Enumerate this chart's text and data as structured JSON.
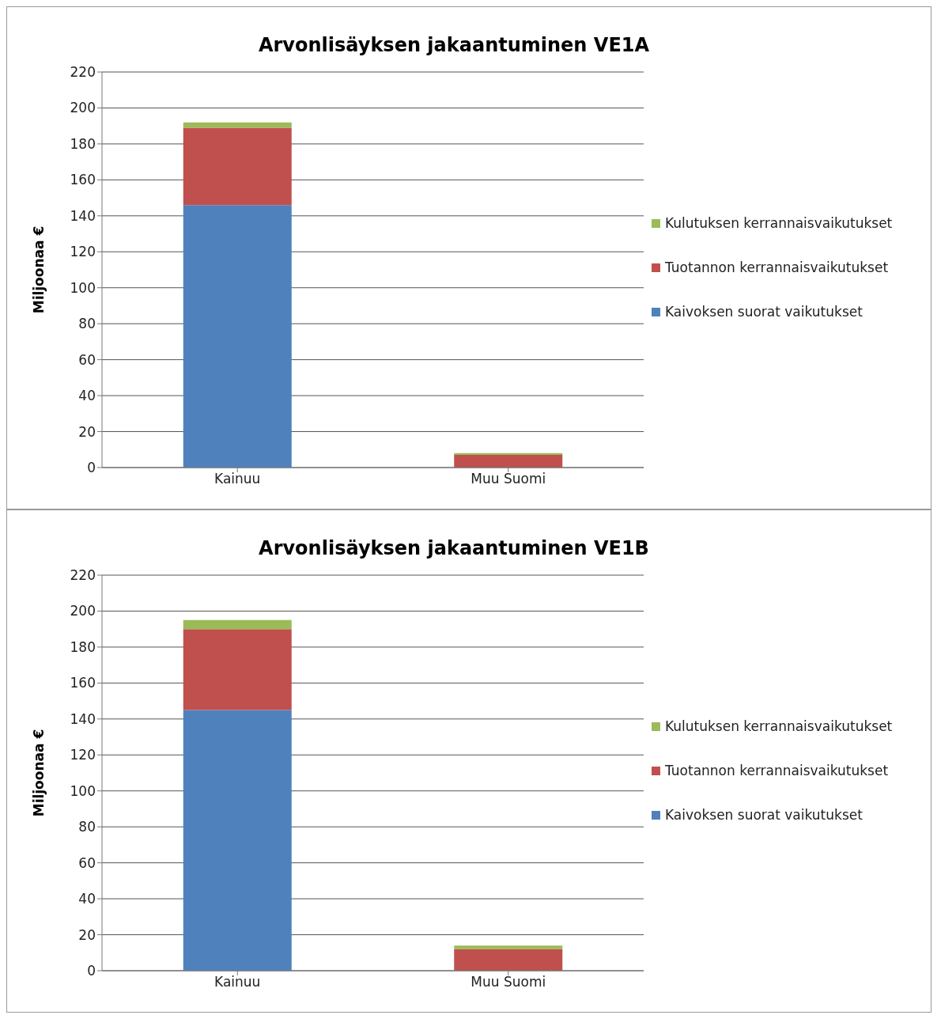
{
  "chart_data": [
    {
      "type": "bar",
      "title": "Arvonlisäyksen jakaantuminen VE1A",
      "ylabel": "Miljoonaa €",
      "categories": [
        "Kainuu",
        "Muu Suomi"
      ],
      "stacked": true,
      "ylim": [
        0,
        220
      ],
      "yticks": [
        0,
        20,
        40,
        60,
        80,
        100,
        120,
        140,
        160,
        180,
        200,
        220
      ],
      "grid": "y",
      "legend": "right",
      "series": [
        {
          "name": "Kaivoksen suorat vaikutukset",
          "color": "#4f81bd",
          "values": [
            146,
            0
          ]
        },
        {
          "name": "Tuotannon kerrannaisvaikutukset",
          "color": "#c0504d",
          "values": [
            43,
            7
          ]
        },
        {
          "name": "Kulutuksen kerrannaisvaikutukset",
          "color": "#9bbb59",
          "values": [
            3,
            1
          ]
        }
      ]
    },
    {
      "type": "bar",
      "title": "Arvonlisäyksen jakaantuminen VE1B",
      "ylabel": "Miljoonaa €",
      "categories": [
        "Kainuu",
        "Muu Suomi"
      ],
      "stacked": true,
      "ylim": [
        0,
        220
      ],
      "yticks": [
        0,
        20,
        40,
        60,
        80,
        100,
        120,
        140,
        160,
        180,
        200,
        220
      ],
      "grid": "y",
      "legend": "right",
      "series": [
        {
          "name": "Kaivoksen suorat vaikutukset",
          "color": "#4f81bd",
          "values": [
            145,
            0
          ]
        },
        {
          "name": "Tuotannon kerrannaisvaikutukset",
          "color": "#c0504d",
          "values": [
            45,
            12
          ]
        },
        {
          "name": "Kulutuksen kerrannaisvaikutukset",
          "color": "#9bbb59",
          "values": [
            5,
            2
          ]
        }
      ]
    }
  ]
}
